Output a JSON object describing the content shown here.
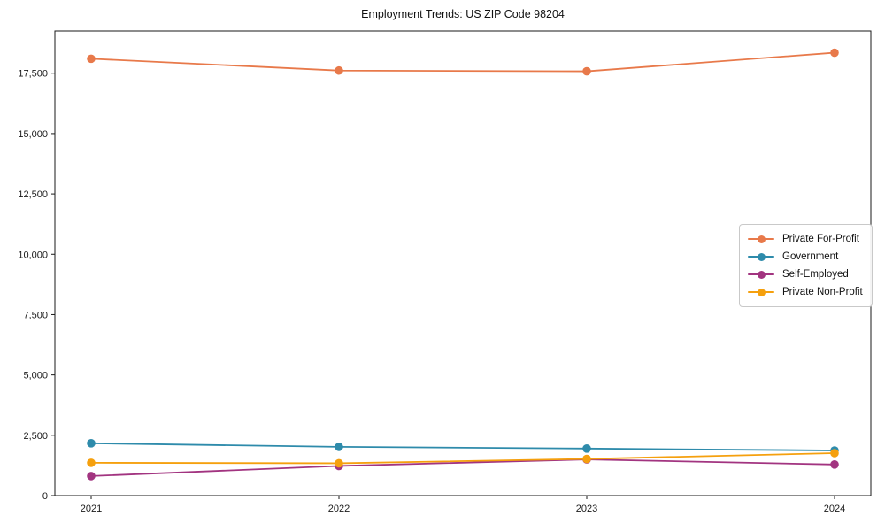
{
  "chart_data": {
    "type": "line",
    "title": "Employment Trends: US ZIP Code 98204",
    "x": [
      2021,
      2022,
      2023,
      2024
    ],
    "xtick_labels": [
      "2021",
      "2022",
      "2023",
      "2024"
    ],
    "yticks": [
      0,
      2500,
      5000,
      7500,
      10000,
      12500,
      15000,
      17500
    ],
    "ytick_labels": [
      "0",
      "2,500",
      "5,000",
      "7,500",
      "10,000",
      "12,500",
      "15,000",
      "17,500"
    ],
    "ylim": [
      0,
      19250
    ],
    "grid": false,
    "legend_position": "center-right",
    "marker": "circle",
    "series": [
      {
        "name": "Private For-Profit",
        "color": "#e8794a",
        "values": [
          18100,
          17610,
          17580,
          18350
        ]
      },
      {
        "name": "Government",
        "color": "#2e8bab",
        "values": [
          2170,
          2020,
          1950,
          1870
        ]
      },
      {
        "name": "Self-Employed",
        "color": "#a23480",
        "values": [
          810,
          1230,
          1500,
          1290
        ]
      },
      {
        "name": "Private Non-Profit",
        "color": "#f5a00e",
        "values": [
          1360,
          1340,
          1520,
          1760
        ]
      }
    ]
  },
  "colors": {
    "spine": "#1a1a1a",
    "tick": "#1a1a1a",
    "background": "#ffffff"
  }
}
